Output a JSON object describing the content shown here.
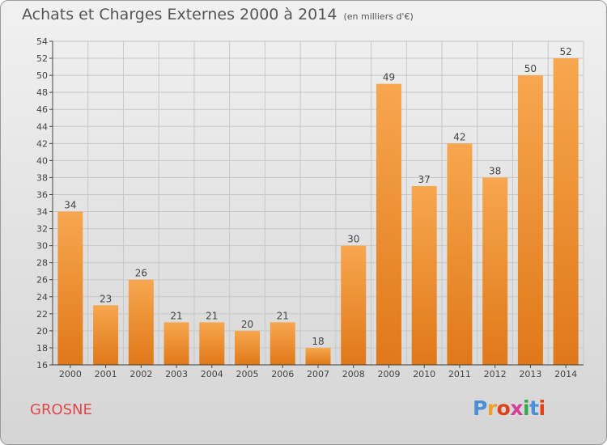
{
  "page": {
    "location": "GROSNE"
  },
  "logo": {
    "text": "Proxiti",
    "letter_colors": [
      "#4a90d9",
      "#f0a030",
      "#e0401a",
      "#d43f9a",
      "#3aa84a",
      "#4a90d9",
      "#e0401a"
    ]
  },
  "colors": {
    "bar_light": "#f7a74f",
    "bar_dark": "#e07818",
    "grid": "#c8c8c8",
    "location_text": "#e04848"
  },
  "chart_data": {
    "type": "bar",
    "title": "Achats et Charges Externes 2000 à 2014",
    "subtitle": "(en milliers d'€)",
    "categories": [
      "2000",
      "2001",
      "2002",
      "2003",
      "2004",
      "2005",
      "2006",
      "2007",
      "2008",
      "2009",
      "2010",
      "2011",
      "2012",
      "2013",
      "2014"
    ],
    "values": [
      34,
      23,
      26,
      21,
      21,
      20,
      21,
      18,
      30,
      49,
      37,
      42,
      38,
      50,
      52
    ],
    "ylim": [
      16,
      54
    ],
    "yticks": [
      16,
      18,
      20,
      22,
      24,
      26,
      28,
      30,
      32,
      34,
      36,
      38,
      40,
      42,
      44,
      46,
      48,
      50,
      52,
      54
    ],
    "grid": true,
    "xlabel": "",
    "ylabel": ""
  }
}
